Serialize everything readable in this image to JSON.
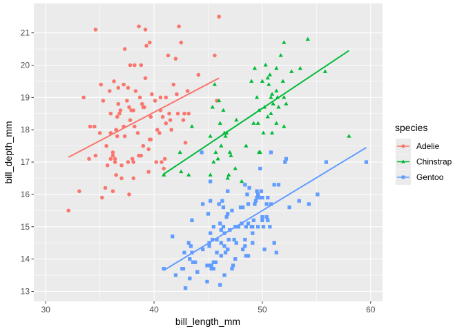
{
  "chart_data": {
    "type": "scatter",
    "xlabel": "bill_length_mm",
    "ylabel": "bill_depth_mm",
    "xlim": [
      28.9,
      61.1
    ],
    "ylim": [
      12.69,
      21.91
    ],
    "xticks": [
      30,
      40,
      50,
      60
    ],
    "yticks": [
      13,
      14,
      15,
      16,
      17,
      18,
      19,
      20,
      21
    ],
    "grid": true,
    "legend": {
      "title": "species",
      "placement": "right"
    },
    "series": [
      {
        "name": "Adelie",
        "color": "#F8766D",
        "marker": "circle",
        "trend": {
          "x": [
            32.1,
            46.0
          ],
          "y": [
            17.15,
            19.6
          ]
        },
        "points": [
          [
            32.1,
            15.5
          ],
          [
            33.1,
            16.1
          ],
          [
            33.5,
            19.0
          ],
          [
            34.0,
            17.1
          ],
          [
            34.1,
            18.1
          ],
          [
            34.5,
            18.1
          ],
          [
            34.6,
            21.1
          ],
          [
            34.6,
            17.2
          ],
          [
            35.0,
            17.9
          ],
          [
            35.1,
            19.4
          ],
          [
            35.2,
            15.9
          ],
          [
            35.3,
            18.9
          ],
          [
            35.5,
            16.2
          ],
          [
            35.6,
            17.5
          ],
          [
            35.7,
            16.9
          ],
          [
            35.9,
            19.2
          ],
          [
            36.0,
            17.9
          ],
          [
            36.0,
            17.1
          ],
          [
            36.0,
            18.5
          ],
          [
            36.2,
            17.2
          ],
          [
            36.2,
            16.1
          ],
          [
            36.2,
            17.3
          ],
          [
            36.3,
            19.5
          ],
          [
            36.4,
            17.1
          ],
          [
            36.4,
            17.0
          ],
          [
            36.5,
            18.0
          ],
          [
            36.5,
            16.6
          ],
          [
            36.6,
            17.8
          ],
          [
            36.6,
            18.4
          ],
          [
            36.7,
            18.8
          ],
          [
            36.7,
            19.3
          ],
          [
            36.8,
            18.5
          ],
          [
            36.9,
            18.6
          ],
          [
            37.0,
            16.9
          ],
          [
            37.0,
            16.5
          ],
          [
            37.2,
            18.1
          ],
          [
            37.2,
            19.4
          ],
          [
            37.3,
            20.5
          ],
          [
            37.3,
            17.8
          ],
          [
            37.5,
            18.9
          ],
          [
            37.6,
            17.0
          ],
          [
            37.6,
            19.3
          ],
          [
            37.7,
            18.7
          ],
          [
            37.7,
            16.0
          ],
          [
            37.8,
            18.3
          ],
          [
            37.8,
            20.0
          ],
          [
            37.9,
            18.6
          ],
          [
            38.0,
            17.1
          ],
          [
            38.1,
            18.6
          ],
          [
            38.1,
            17.0
          ],
          [
            38.1,
            16.5
          ],
          [
            38.2,
            18.1
          ],
          [
            38.2,
            20.0
          ],
          [
            38.3,
            19.2
          ],
          [
            38.5,
            17.9
          ],
          [
            38.6,
            21.2
          ],
          [
            38.6,
            17.2
          ],
          [
            38.7,
            19.0
          ],
          [
            38.8,
            17.2
          ],
          [
            38.8,
            20.0
          ],
          [
            38.9,
            18.8
          ],
          [
            39.0,
            17.5
          ],
          [
            39.0,
            18.7
          ],
          [
            39.1,
            18.7
          ],
          [
            39.2,
            21.1
          ],
          [
            39.2,
            19.6
          ],
          [
            39.3,
            20.6
          ],
          [
            39.5,
            17.4
          ],
          [
            39.5,
            16.7
          ],
          [
            39.6,
            17.7
          ],
          [
            39.6,
            20.7
          ],
          [
            39.7,
            18.4
          ],
          [
            39.7,
            17.7
          ],
          [
            39.8,
            19.1
          ],
          [
            40.1,
            18.9
          ],
          [
            40.2,
            17.0
          ],
          [
            40.3,
            18.0
          ],
          [
            40.5,
            17.9
          ],
          [
            40.6,
            18.6
          ],
          [
            40.6,
            19.0
          ],
          [
            40.7,
            17.0
          ],
          [
            40.8,
            18.4
          ],
          [
            40.9,
            16.8
          ],
          [
            41.0,
            17.1
          ],
          [
            41.1,
            19.0
          ],
          [
            41.1,
            18.2
          ],
          [
            41.3,
            20.3
          ],
          [
            41.4,
            18.5
          ],
          [
            41.5,
            18.3
          ],
          [
            41.6,
            18.0
          ],
          [
            41.8,
            19.4
          ],
          [
            42.0,
            20.2
          ],
          [
            42.1,
            19.1
          ],
          [
            42.2,
            18.5
          ],
          [
            42.3,
            21.2
          ],
          [
            42.5,
            20.7
          ],
          [
            42.7,
            18.3
          ],
          [
            42.8,
            18.5
          ],
          [
            42.9,
            17.6
          ],
          [
            43.1,
            19.2
          ],
          [
            43.2,
            18.5
          ],
          [
            44.1,
            19.7
          ],
          [
            45.6,
            20.3
          ],
          [
            45.8,
            18.9
          ],
          [
            46.0,
            21.5
          ]
        ]
      },
      {
        "name": "Chinstrap",
        "color": "#00BA38",
        "marker": "triangle",
        "trend": {
          "x": [
            40.9,
            58.0
          ],
          "y": [
            16.63,
            20.45
          ]
        },
        "points": [
          [
            40.9,
            16.6
          ],
          [
            42.4,
            17.3
          ],
          [
            42.5,
            16.7
          ],
          [
            43.2,
            16.6
          ],
          [
            43.5,
            18.1
          ],
          [
            45.2,
            17.8
          ],
          [
            45.2,
            16.6
          ],
          [
            45.4,
            18.7
          ],
          [
            45.5,
            17.0
          ],
          [
            45.6,
            19.4
          ],
          [
            45.7,
            17.3
          ],
          [
            46.0,
            18.9
          ],
          [
            46.1,
            18.2
          ],
          [
            46.2,
            17.5
          ],
          [
            46.4,
            18.6
          ],
          [
            46.5,
            17.9
          ],
          [
            46.6,
            17.8
          ],
          [
            46.7,
            17.9
          ],
          [
            46.8,
            16.5
          ],
          [
            46.9,
            16.6
          ],
          [
            47.0,
            17.3
          ],
          [
            47.5,
            16.8
          ],
          [
            47.6,
            18.3
          ],
          [
            48.1,
            16.4
          ],
          [
            48.5,
            17.5
          ],
          [
            49.0,
            19.5
          ],
          [
            49.2,
            18.2
          ],
          [
            49.3,
            19.9
          ],
          [
            49.5,
            19.0
          ],
          [
            49.6,
            18.2
          ],
          [
            49.7,
            18.6
          ],
          [
            49.8,
            17.3
          ],
          [
            50.0,
            19.5
          ],
          [
            50.1,
            17.9
          ],
          [
            50.2,
            18.7
          ],
          [
            50.3,
            20.0
          ],
          [
            50.5,
            18.4
          ],
          [
            50.5,
            19.6
          ],
          [
            50.6,
            19.4
          ],
          [
            50.7,
            19.7
          ],
          [
            50.8,
            19.0
          ],
          [
            50.8,
            18.5
          ],
          [
            50.9,
            19.1
          ],
          [
            50.9,
            17.9
          ],
          [
            51.0,
            18.8
          ],
          [
            51.3,
            19.2
          ],
          [
            51.3,
            18.2
          ],
          [
            51.3,
            19.9
          ],
          [
            51.4,
            19.0
          ],
          [
            51.5,
            18.7
          ],
          [
            51.7,
            20.3
          ],
          [
            51.9,
            19.5
          ],
          [
            52.0,
            18.1
          ],
          [
            52.0,
            19.0
          ],
          [
            52.0,
            20.7
          ],
          [
            52.2,
            18.8
          ],
          [
            52.7,
            19.8
          ],
          [
            53.5,
            19.9
          ],
          [
            54.2,
            20.8
          ],
          [
            55.8,
            19.8
          ],
          [
            58.0,
            17.8
          ],
          [
            45.9,
            17.1
          ],
          [
            49.7,
            17.3
          ],
          [
            47.1,
            17.2
          ]
        ]
      },
      {
        "name": "Gentoo",
        "color": "#619CFF",
        "marker": "square",
        "trend": {
          "x": [
            40.9,
            59.6
          ],
          "y": [
            13.65,
            17.45
          ]
        },
        "points": [
          [
            40.9,
            13.7
          ],
          [
            41.7,
            14.7
          ],
          [
            42.0,
            13.5
          ],
          [
            42.6,
            13.7
          ],
          [
            42.7,
            13.7
          ],
          [
            42.8,
            14.2
          ],
          [
            42.9,
            13.1
          ],
          [
            43.2,
            14.5
          ],
          [
            43.3,
            13.4
          ],
          [
            43.3,
            14.0
          ],
          [
            43.4,
            14.4
          ],
          [
            43.5,
            14.2
          ],
          [
            43.5,
            15.2
          ],
          [
            43.6,
            13.9
          ],
          [
            43.8,
            13.9
          ],
          [
            44.0,
            13.6
          ],
          [
            44.4,
            17.3
          ],
          [
            44.5,
            14.3
          ],
          [
            44.5,
            15.7
          ],
          [
            44.9,
            13.3
          ],
          [
            44.9,
            13.8
          ],
          [
            45.0,
            15.4
          ],
          [
            45.1,
            14.5
          ],
          [
            45.1,
            14.4
          ],
          [
            45.2,
            13.8
          ],
          [
            45.2,
            14.8
          ],
          [
            45.2,
            15.8
          ],
          [
            45.2,
            16.4
          ],
          [
            45.3,
            13.7
          ],
          [
            45.3,
            13.8
          ],
          [
            45.4,
            14.6
          ],
          [
            45.5,
            13.7
          ],
          [
            45.5,
            13.9
          ],
          [
            45.5,
            15.0
          ],
          [
            45.7,
            13.9
          ],
          [
            45.8,
            14.2
          ],
          [
            45.8,
            14.6
          ],
          [
            46.1,
            13.2
          ],
          [
            46.1,
            15.1
          ],
          [
            46.2,
            14.1
          ],
          [
            46.2,
            14.5
          ],
          [
            46.2,
            14.9
          ],
          [
            46.3,
            15.8
          ],
          [
            46.4,
            15.0
          ],
          [
            46.4,
            15.6
          ],
          [
            46.5,
            13.5
          ],
          [
            46.5,
            14.4
          ],
          [
            46.5,
            14.8
          ],
          [
            46.6,
            14.2
          ],
          [
            46.7,
            15.3
          ],
          [
            46.8,
            14.3
          ],
          [
            46.8,
            15.4
          ],
          [
            46.8,
            16.1
          ],
          [
            46.9,
            14.6
          ],
          [
            47.2,
            13.7
          ],
          [
            47.2,
            15.5
          ],
          [
            47.3,
            13.8
          ],
          [
            47.4,
            14.6
          ],
          [
            47.5,
            14.0
          ],
          [
            47.5,
            15.0
          ],
          [
            47.6,
            14.5
          ],
          [
            47.7,
            15.0
          ],
          [
            47.8,
            15.0
          ],
          [
            48.1,
            15.1
          ],
          [
            48.2,
            14.3
          ],
          [
            48.2,
            15.6
          ],
          [
            48.4,
            14.4
          ],
          [
            48.4,
            14.6
          ],
          [
            48.4,
            16.3
          ],
          [
            48.5,
            14.1
          ],
          [
            48.5,
            15.0
          ],
          [
            48.6,
            16.0
          ],
          [
            48.7,
            14.1
          ],
          [
            48.7,
            15.1
          ],
          [
            48.7,
            15.7
          ],
          [
            48.8,
            16.2
          ],
          [
            49.0,
            15.0
          ],
          [
            49.1,
            14.5
          ],
          [
            49.1,
            14.8
          ],
          [
            49.1,
            15.0
          ],
          [
            49.2,
            15.2
          ],
          [
            49.3,
            15.7
          ],
          [
            49.4,
            15.8
          ],
          [
            49.5,
            15.9
          ],
          [
            49.5,
            16.1
          ],
          [
            49.6,
            15.0
          ],
          [
            49.6,
            16.0
          ],
          [
            49.8,
            15.9
          ],
          [
            49.8,
            16.8
          ],
          [
            49.9,
            16.1
          ],
          [
            50.0,
            15.2
          ],
          [
            50.0,
            15.3
          ],
          [
            50.0,
            15.9
          ],
          [
            50.1,
            15.0
          ],
          [
            50.2,
            14.3
          ],
          [
            50.4,
            15.3
          ],
          [
            50.4,
            15.7
          ],
          [
            50.5,
            15.2
          ],
          [
            50.5,
            15.9
          ],
          [
            50.7,
            15.0
          ],
          [
            50.8,
            15.7
          ],
          [
            50.8,
            17.3
          ],
          [
            51.1,
            14.5
          ],
          [
            51.1,
            16.3
          ],
          [
            51.3,
            14.2
          ],
          [
            51.5,
            16.3
          ],
          [
            52.1,
            17.0
          ],
          [
            52.2,
            17.1
          ],
          [
            52.5,
            15.6
          ],
          [
            53.4,
            15.8
          ],
          [
            54.3,
            15.7
          ],
          [
            55.1,
            16.0
          ],
          [
            55.9,
            17.0
          ],
          [
            59.6,
            17.0
          ],
          [
            46.0,
            15.7
          ],
          [
            47.0,
            14.9
          ],
          [
            48.0,
            15.6
          ]
        ]
      }
    ]
  }
}
